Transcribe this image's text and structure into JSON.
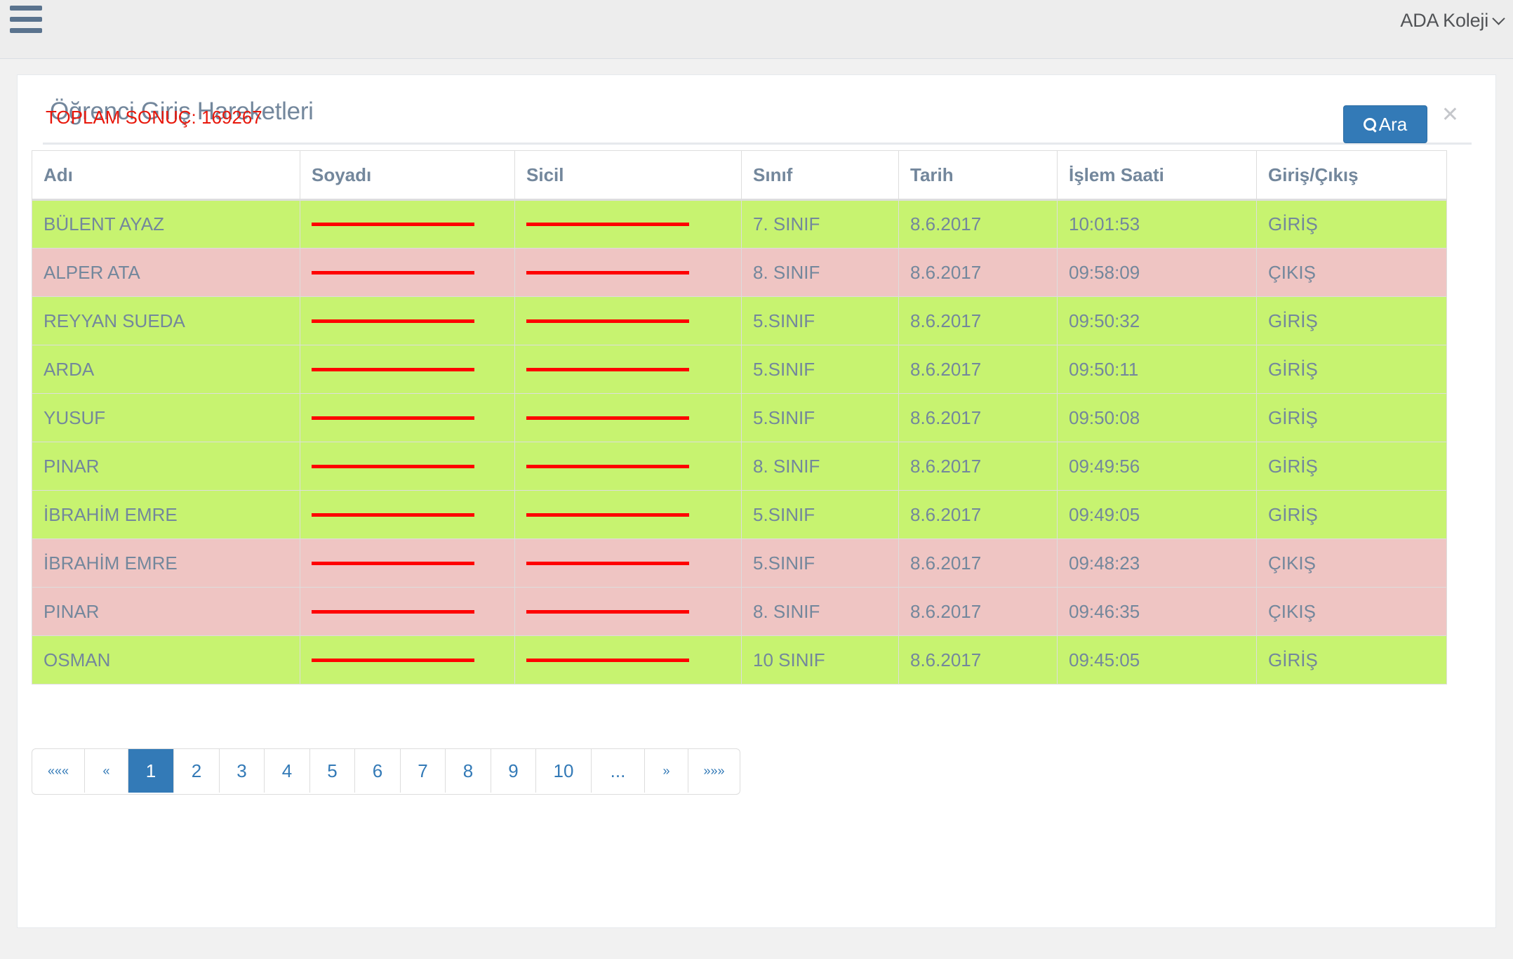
{
  "header": {
    "menu_icon": "hamburger-icon",
    "user_name": "ADA Koleji"
  },
  "panel": {
    "title": "Öğrenci Giriş Hareketleri",
    "collapse_icon": "chevron-up-icon",
    "close_icon": "close-icon",
    "close_glyph": "✕"
  },
  "summary": {
    "total_label": "TOPLAM SONUÇ: 169267"
  },
  "search_button": {
    "label": "Ara",
    "icon": "search-icon"
  },
  "table": {
    "columns": [
      "Adı",
      "Soyadı",
      "Sicil",
      "Sınıf",
      "Tarih",
      "İşlem Saati",
      "Giriş/Çıkış"
    ],
    "rows": [
      {
        "name": "BÜLENT AYAZ",
        "class": "7. SINIF",
        "date": "8.6.2017",
        "time": "10:01:53",
        "direction": "GİRİŞ",
        "status": "in"
      },
      {
        "name": "ALPER ATA",
        "class": "8. SINIF",
        "date": "8.6.2017",
        "time": "09:58:09",
        "direction": "ÇIKIŞ",
        "status": "out"
      },
      {
        "name": "REYYAN SUEDA",
        "class": "5.SINIF",
        "date": "8.6.2017",
        "time": "09:50:32",
        "direction": "GİRİŞ",
        "status": "in"
      },
      {
        "name": "ARDA",
        "class": "5.SINIF",
        "date": "8.6.2017",
        "time": "09:50:11",
        "direction": "GİRİŞ",
        "status": "in"
      },
      {
        "name": "YUSUF",
        "class": "5.SINIF",
        "date": "8.6.2017",
        "time": "09:50:08",
        "direction": "GİRİŞ",
        "status": "in"
      },
      {
        "name": "PINAR",
        "class": "8. SINIF",
        "date": "8.6.2017",
        "time": "09:49:56",
        "direction": "GİRİŞ",
        "status": "in"
      },
      {
        "name": "İBRAHİM EMRE",
        "class": "5.SINIF",
        "date": "8.6.2017",
        "time": "09:49:05",
        "direction": "GİRİŞ",
        "status": "in"
      },
      {
        "name": "İBRAHİM EMRE",
        "class": "5.SINIF",
        "date": "8.6.2017",
        "time": "09:48:23",
        "direction": "ÇIKIŞ",
        "status": "out"
      },
      {
        "name": "PINAR",
        "class": "8. SINIF",
        "date": "8.6.2017",
        "time": "09:46:35",
        "direction": "ÇIKIŞ",
        "status": "out"
      },
      {
        "name": "OSMAN",
        "class": "10 SINIF",
        "date": "8.6.2017",
        "time": "09:45:05",
        "direction": "GİRİŞ",
        "status": "in"
      }
    ]
  },
  "pagination": {
    "first": "«««",
    "prev": "«",
    "pages": [
      "1",
      "2",
      "3",
      "4",
      "5",
      "6",
      "7",
      "8",
      "9",
      "10"
    ],
    "ellipsis": "...",
    "next": "»",
    "last": "»»»",
    "active_page": "1"
  },
  "colors": {
    "row_in": "#c7f370",
    "row_out": "#efc5c3",
    "accent": "#337ab7",
    "total_text": "#e8180c",
    "redaction": "#ff0000"
  }
}
